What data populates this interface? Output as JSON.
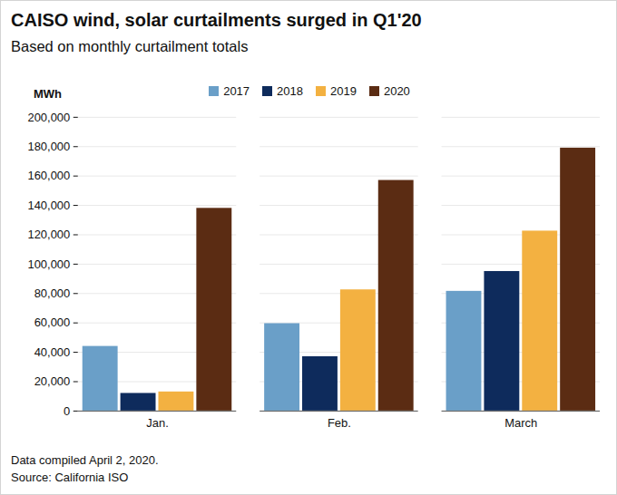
{
  "chart_data": {
    "type": "bar",
    "title": "CAISO wind, solar curtailments surged in Q1'20",
    "subtitle": "Based on monthly curtailment totals",
    "y_label": "MWh",
    "categories": [
      "Jan.",
      "Feb.",
      "March"
    ],
    "series": [
      {
        "name": "2017",
        "color": "#6a9fc8",
        "values": [
          44000,
          59500,
          81500
        ]
      },
      {
        "name": "2018",
        "color": "#0e2b5c",
        "values": [
          12000,
          37000,
          95000
        ]
      },
      {
        "name": "2019",
        "color": "#f3b141",
        "values": [
          13000,
          82500,
          122500
        ]
      },
      {
        "name": "2020",
        "color": "#5b2c13",
        "values": [
          138000,
          157000,
          179000
        ]
      }
    ],
    "ylim": [
      0,
      200000
    ],
    "yticks": [
      0,
      {
        "value": 20000,
        "label": "20,000"
      },
      {
        "value": 40000,
        "label": "40,000"
      },
      {
        "value": 60000,
        "label": "60,000"
      },
      {
        "value": 80000,
        "label": "80,000"
      },
      {
        "value": 100000,
        "label": "100,000"
      },
      {
        "value": 120000,
        "label": "120,000"
      },
      {
        "value": 140000,
        "label": "140,000"
      },
      {
        "value": 160000,
        "label": "160,000"
      },
      {
        "value": 180000,
        "label": "180,000"
      },
      {
        "value": 200000,
        "label": "200,000"
      }
    ],
    "grid": true,
    "legend": "top",
    "footnotes": [
      "Data compiled April 2, 2020.",
      "Source: California ISO"
    ]
  }
}
